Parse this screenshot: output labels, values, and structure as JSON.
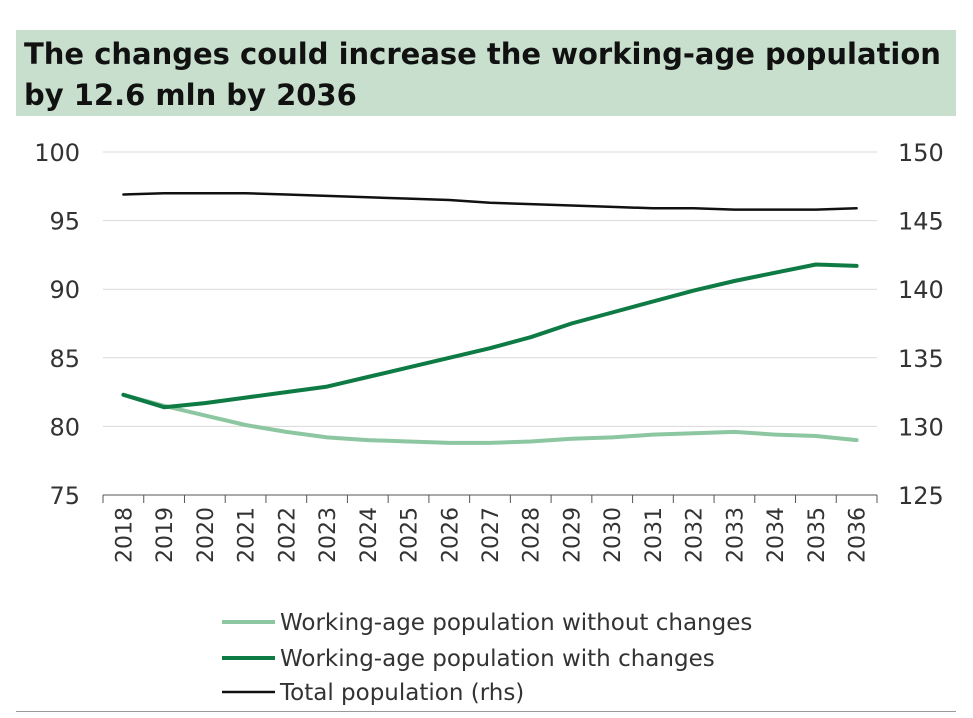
{
  "colors": {
    "title_bg": "#c8dfcd",
    "grid": "#d9d9d9",
    "axis": "#555555",
    "without_changes": "#8cc7a2",
    "with_changes": "#0e7b45",
    "total": "#111111"
  },
  "chart_data": {
    "type": "line",
    "title": "The changes could increase the working-age population by 12.6 mln by 2036",
    "x": [
      "2018",
      "2019",
      "2020",
      "2021",
      "2022",
      "2023",
      "2024",
      "2025",
      "2026",
      "2027",
      "2028",
      "2029",
      "2030",
      "2031",
      "2032",
      "2033",
      "2034",
      "2035",
      "2036"
    ],
    "y_left": {
      "min": 75,
      "max": 100,
      "ticks": [
        100,
        95,
        90,
        85,
        80,
        75
      ]
    },
    "y_right": {
      "min": 125,
      "max": 150,
      "ticks": [
        150,
        145,
        140,
        135,
        130,
        125
      ]
    },
    "grid": true,
    "legend_position": "bottom",
    "series": [
      {
        "name": "Working-age population without changes",
        "axis": "left",
        "values": [
          82.3,
          81.5,
          80.8,
          80.1,
          79.6,
          79.2,
          79.0,
          78.9,
          78.8,
          78.8,
          78.9,
          79.1,
          79.2,
          79.4,
          79.5,
          79.6,
          79.4,
          79.3,
          79.0
        ]
      },
      {
        "name": "Working-age population with changes",
        "axis": "left",
        "values": [
          82.3,
          81.4,
          81.7,
          82.1,
          82.5,
          82.9,
          83.6,
          84.3,
          85.0,
          85.7,
          86.5,
          87.5,
          88.3,
          89.1,
          89.9,
          90.6,
          91.2,
          91.8,
          91.7
        ]
      },
      {
        "name": "Total population (rhs)",
        "axis": "right",
        "values": [
          146.9,
          147.0,
          147.0,
          147.0,
          146.9,
          146.8,
          146.7,
          146.6,
          146.5,
          146.3,
          146.2,
          146.1,
          146.0,
          145.9,
          145.9,
          145.8,
          145.8,
          145.8,
          145.9
        ]
      }
    ]
  }
}
